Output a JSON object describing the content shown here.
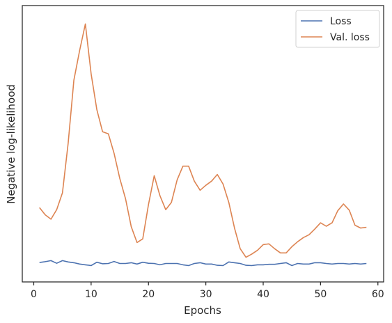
{
  "chart_data": {
    "type": "line",
    "title": "",
    "xlabel": "Epochs",
    "ylabel": "Negative log-likelihood",
    "xlim": [
      -2,
      61
    ],
    "ylim": [
      0,
      1
    ],
    "y_tick_labels_shown": false,
    "x_ticks": [
      0,
      10,
      20,
      30,
      40,
      50,
      60
    ],
    "x_tick_labels": [
      "0",
      "10",
      "20",
      "30",
      "40",
      "50",
      "60"
    ],
    "grid": false,
    "legend_position": "top-right",
    "x": [
      1,
      2,
      3,
      4,
      5,
      6,
      7,
      8,
      9,
      10,
      11,
      12,
      13,
      14,
      15,
      16,
      17,
      18,
      19,
      20,
      21,
      22,
      23,
      24,
      25,
      26,
      27,
      28,
      29,
      30,
      31,
      32,
      33,
      34,
      35,
      36,
      37,
      38,
      39,
      40,
      41,
      42,
      43,
      44,
      45,
      46,
      47,
      48,
      49,
      50,
      51,
      52,
      53,
      54,
      55,
      56,
      57,
      58
    ],
    "series": [
      {
        "name": "Loss",
        "color": "#4c72b0",
        "values": [
          0.059,
          0.062,
          0.066,
          0.056,
          0.066,
          0.061,
          0.058,
          0.053,
          0.05,
          0.047,
          0.06,
          0.054,
          0.055,
          0.063,
          0.055,
          0.055,
          0.058,
          0.053,
          0.06,
          0.056,
          0.055,
          0.05,
          0.055,
          0.055,
          0.055,
          0.05,
          0.047,
          0.055,
          0.058,
          0.053,
          0.053,
          0.048,
          0.047,
          0.061,
          0.058,
          0.055,
          0.048,
          0.047,
          0.05,
          0.05,
          0.052,
          0.052,
          0.055,
          0.058,
          0.047,
          0.055,
          0.053,
          0.053,
          0.058,
          0.058,
          0.055,
          0.053,
          0.055,
          0.055,
          0.053,
          0.055,
          0.053,
          0.055
        ]
      },
      {
        "name": "Val. loss",
        "color": "#dd8452",
        "values": [
          0.271,
          0.243,
          0.226,
          0.263,
          0.328,
          0.52,
          0.763,
          0.878,
          0.98,
          0.787,
          0.649,
          0.564,
          0.556,
          0.481,
          0.384,
          0.305,
          0.197,
          0.136,
          0.15,
          0.282,
          0.394,
          0.317,
          0.263,
          0.291,
          0.378,
          0.431,
          0.431,
          0.373,
          0.338,
          0.357,
          0.373,
          0.399,
          0.362,
          0.291,
          0.192,
          0.112,
          0.079,
          0.091,
          0.106,
          0.128,
          0.131,
          0.112,
          0.096,
          0.096,
          0.12,
          0.139,
          0.155,
          0.166,
          0.188,
          0.212,
          0.199,
          0.212,
          0.259,
          0.285,
          0.261,
          0.203,
          0.192,
          0.195
        ]
      }
    ]
  }
}
